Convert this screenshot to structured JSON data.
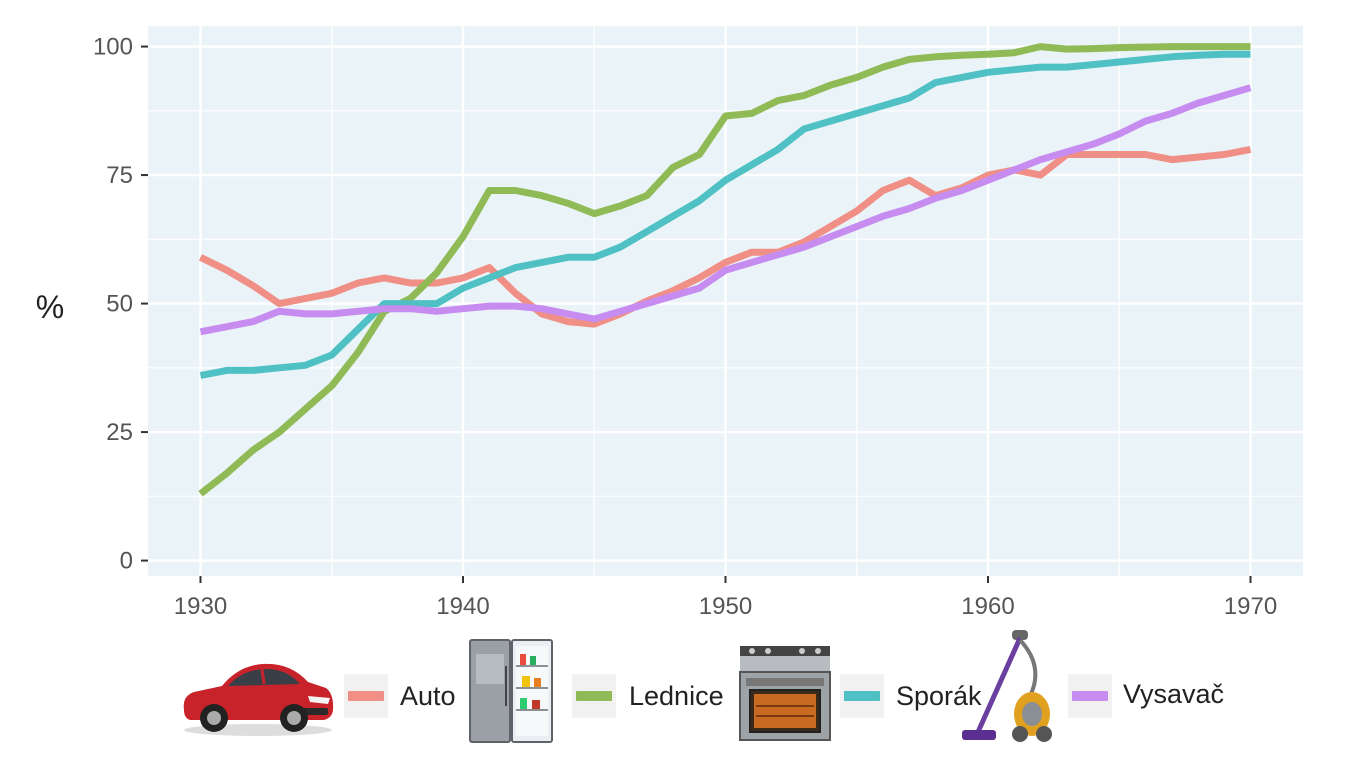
{
  "chart_data": {
    "type": "line",
    "title": "",
    "xlabel": "",
    "ylabel": "%",
    "xlim": [
      1928,
      1972
    ],
    "ylim": [
      -3,
      104
    ],
    "x_ticks": [
      "1930",
      "1940",
      "1950",
      "1960",
      "1970"
    ],
    "y_ticks": [
      "0",
      "25",
      "50",
      "75",
      "100"
    ],
    "grid": true,
    "legend_position": "bottom",
    "x": [
      1930,
      1931,
      1932,
      1933,
      1934,
      1935,
      1936,
      1937,
      1938,
      1939,
      1940,
      1941,
      1942,
      1943,
      1944,
      1945,
      1946,
      1947,
      1948,
      1949,
      1950,
      1951,
      1952,
      1953,
      1954,
      1955,
      1956,
      1957,
      1958,
      1959,
      1960,
      1961,
      1962,
      1963,
      1964,
      1965,
      1966,
      1967,
      1968,
      1969,
      1970
    ],
    "series": [
      {
        "name": "Auto",
        "color": "#f08f86",
        "values": [
          59,
          56.5,
          53.5,
          50,
          51,
          52,
          54,
          55,
          54,
          54,
          55,
          57,
          52,
          48,
          46.5,
          46,
          48,
          50.5,
          52.5,
          55,
          58,
          60,
          60,
          62,
          65,
          68,
          72,
          74,
          71,
          72.5,
          75,
          76,
          75,
          79,
          79,
          79,
          79,
          78,
          78.5,
          79,
          80
        ]
      },
      {
        "name": "Lednice",
        "color": "#8fba55",
        "values": [
          13,
          17,
          21.5,
          25,
          29.5,
          34,
          40.5,
          48.5,
          51,
          56,
          63,
          72,
          72,
          71,
          69.5,
          67.5,
          69,
          71,
          76.5,
          79,
          86.5,
          87,
          89.5,
          90.5,
          92.5,
          94,
          96,
          97.5,
          98,
          98.3,
          98.5,
          98.8,
          100,
          99.5,
          99.6,
          99.8,
          99.9,
          100,
          100,
          100,
          100
        ]
      },
      {
        "name": "Sporák",
        "color": "#4fc1c4",
        "values": [
          36,
          37,
          37,
          37.5,
          38,
          40,
          45,
          50,
          50,
          50,
          53,
          55,
          57,
          58,
          59,
          59,
          61,
          64,
          67,
          70,
          74,
          77,
          80,
          84,
          85.5,
          87,
          88.5,
          90,
          93,
          94,
          95,
          95.5,
          96,
          96,
          96.5,
          97,
          97.5,
          98,
          98.3,
          98.5,
          98.5
        ]
      },
      {
        "name": "Vysavač",
        "color": "#c78cf0",
        "values": [
          44.5,
          45.5,
          46.5,
          48.5,
          48,
          48,
          48.5,
          49,
          49,
          48.5,
          49,
          49.5,
          49.5,
          49,
          48,
          47,
          48.5,
          50,
          51.5,
          53,
          56.5,
          58,
          59.5,
          61,
          63,
          65,
          67,
          68.5,
          70.5,
          72,
          74,
          76,
          78,
          79.5,
          81,
          83,
          85.5,
          87,
          89,
          90.5,
          92
        ]
      }
    ]
  },
  "legend": {
    "items": [
      {
        "label": "Auto",
        "icon": "car-icon"
      },
      {
        "label": "Lednice",
        "icon": "refrigerator-icon"
      },
      {
        "label": "Sporák",
        "icon": "stove-icon"
      },
      {
        "label": "Vysavač",
        "icon": "vacuum-cleaner-icon"
      }
    ]
  },
  "colors": {
    "panel_background": "#eaf3f8",
    "grid": "#ffffff"
  }
}
